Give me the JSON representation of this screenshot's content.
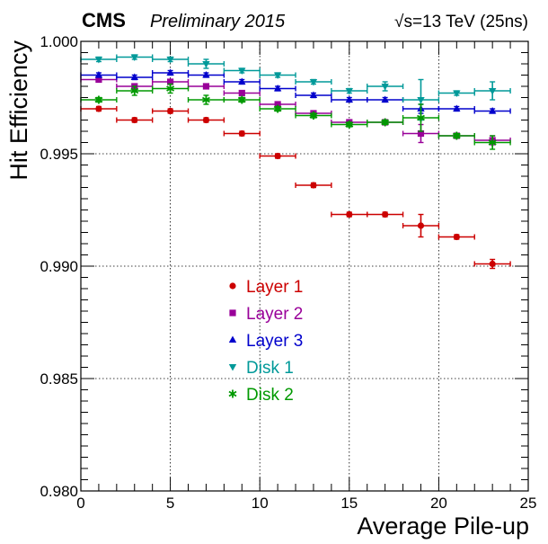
{
  "header": {
    "experiment": "CMS",
    "status": "Preliminary 2015",
    "energy_prefix": "√s",
    "energy_value": "=13 TeV (25ns)"
  },
  "chart_data": {
    "type": "scatter",
    "xlabel": "Average Pile-up",
    "ylabel": "Hit Efficiency",
    "xlim": [
      0,
      25
    ],
    "ylim": [
      0.98,
      1.0
    ],
    "x_ticks": [
      "0",
      "5",
      "10",
      "15",
      "20",
      "25"
    ],
    "y_ticks": [
      "0.980",
      "0.985",
      "0.990",
      "0.995",
      "1.000"
    ],
    "grid": true,
    "x_bin_halfwidth": 1,
    "legend_position": "center-left",
    "series": [
      {
        "name": "Layer 1",
        "color": "#cc0000",
        "marker": "circle",
        "x": [
          1,
          3,
          5,
          7,
          9,
          11,
          13,
          15,
          17,
          19,
          21,
          23
        ],
        "y": [
          0.997,
          0.9965,
          0.9969,
          0.9965,
          0.9959,
          0.9949,
          0.9936,
          0.9923,
          0.9923,
          0.9918,
          0.9913,
          0.9901
        ],
        "err": [
          0.0001,
          0.0001,
          0.0001,
          0.0001,
          0.0001,
          0.0001,
          0.0001,
          0.0001,
          0.0001,
          0.0005,
          0.0001,
          0.0002
        ]
      },
      {
        "name": "Layer 2",
        "color": "#990099",
        "marker": "square",
        "x": [
          1,
          3,
          5,
          7,
          9,
          11,
          13,
          15,
          17,
          19,
          21,
          23
        ],
        "y": [
          0.9983,
          0.998,
          0.9982,
          0.998,
          0.9977,
          0.9972,
          0.9968,
          0.9964,
          0.9964,
          0.9959,
          0.9958,
          0.9956
        ],
        "err": [
          0.0001,
          0.0001,
          0.0001,
          0.0001,
          0.0001,
          0.0001,
          0.0001,
          0.0001,
          0.0001,
          0.0004,
          0.0001,
          0.0002
        ]
      },
      {
        "name": "Layer 3",
        "color": "#0000cc",
        "marker": "triangle-up",
        "x": [
          1,
          3,
          5,
          7,
          9,
          11,
          13,
          15,
          17,
          19,
          21,
          23
        ],
        "y": [
          0.9985,
          0.9984,
          0.9986,
          0.9985,
          0.9982,
          0.9979,
          0.9976,
          0.9974,
          0.9974,
          0.997,
          0.997,
          0.9969
        ],
        "err": [
          0.0001,
          0.0001,
          0.0001,
          0.0001,
          0.0001,
          0.0001,
          0.0001,
          0.0001,
          0.0001,
          0.0002,
          0.0001,
          0.0001
        ]
      },
      {
        "name": "Disk 1",
        "color": "#009999",
        "marker": "triangle-down",
        "x": [
          1,
          3,
          5,
          7,
          9,
          11,
          13,
          15,
          17,
          19,
          21,
          23
        ],
        "y": [
          0.9992,
          0.9993,
          0.9992,
          0.999,
          0.9987,
          0.9985,
          0.9982,
          0.9978,
          0.998,
          0.9974,
          0.9977,
          0.9978
        ],
        "err": [
          0.0001,
          0.0001,
          0.0001,
          0.0002,
          0.0001,
          0.0001,
          0.0001,
          0.0001,
          0.0002,
          0.0009,
          0.0001,
          0.0004
        ]
      },
      {
        "name": "Disk 2",
        "color": "#009900",
        "marker": "star",
        "x": [
          1,
          3,
          5,
          7,
          9,
          11,
          13,
          15,
          17,
          19,
          21,
          23
        ],
        "y": [
          0.9974,
          0.9978,
          0.9979,
          0.9974,
          0.9974,
          0.997,
          0.9967,
          0.9963,
          0.9964,
          0.9966,
          0.9958,
          0.9955
        ],
        "err": [
          0.0001,
          0.0002,
          0.0002,
          0.0002,
          0.0001,
          0.0001,
          0.0001,
          0.0001,
          0.0001,
          0.0006,
          0.0001,
          0.0003
        ]
      }
    ]
  }
}
